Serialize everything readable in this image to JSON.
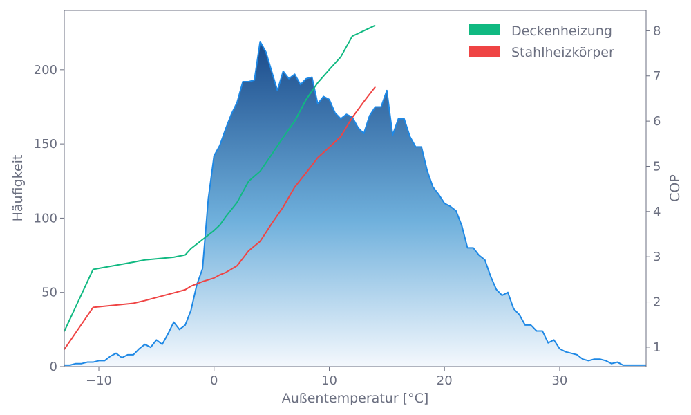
{
  "chart_data": {
    "type": "area",
    "title": "",
    "xlabel": "Außentemperatur [°C]",
    "ylabel": "Häufigkeit",
    "ylabel_right": "COP",
    "xlim": [
      -13,
      37.5
    ],
    "ylim": [
      0,
      240
    ],
    "ylim_right": [
      0.57,
      8.45
    ],
    "x_ticks": [
      -10,
      0,
      10,
      20,
      30
    ],
    "y_ticks": [
      0,
      50,
      100,
      150,
      200
    ],
    "y_ticks_right": [
      1,
      2,
      3,
      4,
      5,
      6,
      7,
      8
    ],
    "grid": false,
    "legend_position": "top-right",
    "colors": {
      "histogram_line": "#1e88e5",
      "histogram_fill_top": "#1a4a8a",
      "histogram_fill_bottom": "#f4f8fd",
      "deckenheizung": "#10b981",
      "stahlheizkoerper": "#ef4444",
      "axis": "#6b6f80"
    },
    "histogram": {
      "name": "Häufigkeit",
      "x": [
        -13,
        -12.5,
        -12,
        -11.5,
        -11,
        -10.5,
        -10,
        -9.5,
        -9,
        -8.5,
        -8,
        -7.5,
        -7,
        -6.5,
        -6,
        -5.5,
        -5,
        -4.5,
        -4,
        -3.5,
        -3,
        -2.5,
        -2,
        -1.5,
        -1,
        -0.5,
        0,
        0.5,
        1,
        1.5,
        2,
        2.5,
        3,
        3.5,
        4,
        4.5,
        5,
        5.5,
        6,
        6.5,
        7,
        7.5,
        8,
        8.5,
        9,
        9.5,
        10,
        10.5,
        11,
        11.5,
        12,
        12.5,
        13,
        13.5,
        14,
        14.5,
        15,
        15.5,
        16,
        16.5,
        17,
        17.5,
        18,
        18.5,
        19,
        19.5,
        20,
        20.5,
        21,
        21.5,
        22,
        22.5,
        23,
        23.5,
        24,
        24.5,
        25,
        25.5,
        26,
        26.5,
        27,
        27.5,
        28,
        28.5,
        29,
        29.5,
        30,
        30.5,
        31,
        31.5,
        32,
        32.5,
        33,
        33.5,
        34,
        34.5,
        35,
        35.5,
        36,
        36.5,
        37,
        37.5
      ],
      "values": [
        1,
        1,
        2,
        2,
        3,
        3,
        4,
        4,
        7,
        9,
        6,
        8,
        8,
        12,
        15,
        13,
        18,
        15,
        22,
        30,
        25,
        28,
        38,
        55,
        66,
        113,
        142,
        149,
        160,
        170,
        178,
        192,
        192,
        193,
        219,
        212,
        199,
        186,
        199,
        194,
        197,
        190,
        194,
        195,
        177,
        182,
        180,
        171,
        167,
        170,
        168,
        161,
        157,
        169,
        175,
        175,
        186,
        156,
        167,
        167,
        155,
        148,
        148,
        132,
        121,
        116,
        110,
        108,
        105,
        95,
        80,
        80,
        75,
        72,
        61,
        52,
        48,
        50,
        39,
        35,
        28,
        28,
        24,
        24,
        16,
        18,
        12,
        10,
        9,
        8,
        5,
        4,
        5,
        5,
        4,
        2,
        3,
        1,
        1,
        1,
        1,
        1
      ]
    },
    "series": [
      {
        "name": "Deckenheizung",
        "axis": "right",
        "x": [
          -13,
          -10.5,
          -7,
          -6,
          -3.5,
          -2.5,
          -2,
          -1,
          0,
          0.5,
          1,
          2,
          3,
          4,
          5,
          6,
          7,
          8,
          9,
          10,
          11,
          12,
          13,
          14
        ],
        "values": [
          1.35,
          2.72,
          2.88,
          2.93,
          2.99,
          3.04,
          3.18,
          3.38,
          3.58,
          3.7,
          3.88,
          4.2,
          4.67,
          4.89,
          5.26,
          5.64,
          6.0,
          6.48,
          6.85,
          7.14,
          7.42,
          7.88,
          8.0,
          8.12
        ]
      },
      {
        "name": "Stahlheizkörper",
        "axis": "right",
        "x": [
          -13,
          -10.5,
          -7,
          -6,
          -3.5,
          -2.5,
          -2,
          -1,
          0,
          0.5,
          1,
          2,
          3,
          4,
          5,
          6,
          7,
          8,
          9,
          10,
          11,
          12,
          13,
          14
        ],
        "values": [
          0.95,
          1.88,
          1.97,
          2.03,
          2.2,
          2.27,
          2.35,
          2.45,
          2.53,
          2.6,
          2.65,
          2.8,
          3.13,
          3.34,
          3.73,
          4.1,
          4.54,
          4.86,
          5.19,
          5.42,
          5.66,
          6.08,
          6.43,
          6.76
        ]
      }
    ]
  }
}
